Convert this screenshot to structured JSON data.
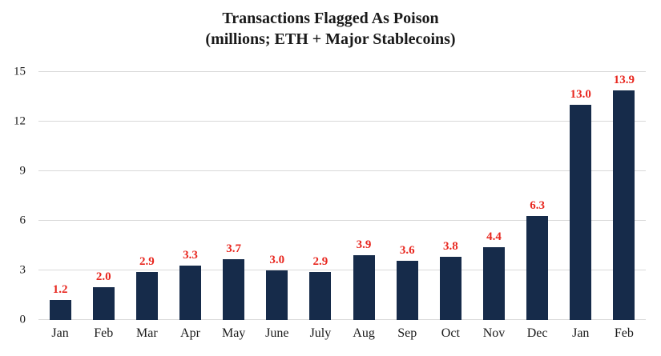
{
  "chart_data": {
    "type": "bar",
    "title": "Transactions Flagged As Poison",
    "subtitle": "(millions; ETH + Major Stablecoins)",
    "categories": [
      "Jan",
      "Feb",
      "Mar",
      "Apr",
      "May",
      "June",
      "July",
      "Aug",
      "Sep",
      "Oct",
      "Nov",
      "Dec",
      "Jan",
      "Feb"
    ],
    "values": [
      1.2,
      2.0,
      2.9,
      3.3,
      3.7,
      3.0,
      2.9,
      3.9,
      3.6,
      3.8,
      4.4,
      6.3,
      13.0,
      13.9
    ],
    "value_labels": [
      "1.2",
      "2.0",
      "2.9",
      "3.3",
      "3.7",
      "3.0",
      "2.9",
      "3.9",
      "3.6",
      "3.8",
      "4.4",
      "6.3",
      "13.0",
      "13.9"
    ],
    "xlabel": "",
    "ylabel": "",
    "ylim": [
      0,
      15
    ],
    "yticks": [
      0,
      3,
      6,
      9,
      12,
      15
    ],
    "grid": true,
    "legend": false,
    "colors": {
      "bar": "#162b4a",
      "data_label": "#e8271f",
      "gridline": "#d9d9d9",
      "text": "#1a1a1a",
      "background": "#ffffff"
    }
  }
}
